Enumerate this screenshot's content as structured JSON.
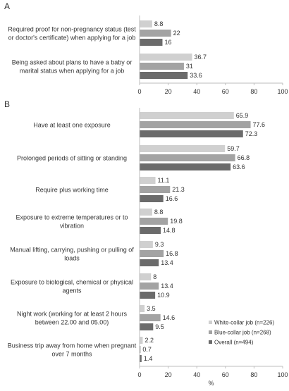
{
  "chart_data": [
    {
      "type": "bar",
      "panel_label": "A",
      "categories": [
        "Required proof for non-pregnancy status (test or doctor's certificate) when applying for a job",
        "Being asked about plans to have a baby or marital status when applying for a job"
      ],
      "category_lines": [
        [
          "Required proof for non-pregnancy status (test",
          "or doctor's certificate) when applying for a job"
        ],
        [
          "Being asked about plans to have a baby or",
          "marital status when applying for a job"
        ]
      ],
      "series": [
        {
          "name": "White-collar job (n=226)",
          "values": [
            8.8,
            36.7
          ]
        },
        {
          "name": "Blue-collar job (n=268)",
          "values": [
            22,
            31
          ]
        },
        {
          "name": "Overall (n=494)",
          "values": [
            16,
            33.6
          ]
        }
      ],
      "value_labels": [
        [
          "8.8",
          "36.7"
        ],
        [
          "22",
          "31"
        ],
        [
          "16",
          "33.6"
        ]
      ],
      "xlim": [
        0,
        100
      ],
      "xticks": [
        "0",
        "20",
        "40",
        "60",
        "80",
        "100"
      ]
    },
    {
      "type": "bar",
      "panel_label": "B",
      "categories": [
        "Have at least one exposure",
        "Prolonged periods of sitting or standing",
        "Require plus working time",
        "Exposure to extreme temperatures or to vibration",
        "Manual lifting, carrying, pushing or pulling of loads",
        "Exposure to biological, chemical or physical agents",
        "Night work (working for at least 2 hours between 22.00 and 05.00)",
        "Business trip away from home when pregnant over 7 months"
      ],
      "category_lines": [
        [
          "Have at least one exposure"
        ],
        [
          "Prolonged periods of sitting or standing"
        ],
        [
          "Require plus working time"
        ],
        [
          "Exposure to extreme temperatures or to",
          "vibration"
        ],
        [
          "Manual lifting, carrying, pushing or pulling of",
          "loads"
        ],
        [
          "Exposure to biological, chemical or physical",
          "agents"
        ],
        [
          "Night work (working for at least 2 hours",
          "between 22.00 and 05.00)"
        ],
        [
          "Business trip away from home when pregnant",
          "over 7 months"
        ]
      ],
      "series": [
        {
          "name": "White-collar job (n=226)",
          "values": [
            65.9,
            59.7,
            11.1,
            8.8,
            9.3,
            8,
            3.5,
            2.2
          ]
        },
        {
          "name": "Blue-collar job (n=268)",
          "values": [
            77.6,
            66.8,
            21.3,
            19.8,
            16.8,
            13.4,
            14.6,
            0.7
          ]
        },
        {
          "name": "Overall (n=494)",
          "values": [
            72.3,
            63.6,
            16.6,
            14.8,
            13.4,
            10.9,
            9.5,
            1.4
          ]
        }
      ],
      "value_labels": [
        [
          "65.9",
          "59.7",
          "11.1",
          "8.8",
          "9.3",
          "8",
          "3.5",
          "2.2"
        ],
        [
          "77.6",
          "66.8",
          "21.3",
          "19.8",
          "16.8",
          "13.4",
          "14.6",
          "0.7"
        ],
        [
          "72.3",
          "63.6",
          "16.6",
          "14.8",
          "13.4",
          "10.9",
          "9.5",
          "1.4"
        ]
      ],
      "xlim": [
        0,
        100
      ],
      "xticks": [
        "0",
        "20",
        "40",
        "60",
        "80",
        "100"
      ],
      "xlabel": "%",
      "legend": {
        "position": "bottom-right",
        "entries": [
          "White-collar job (n=226)",
          "Blue-collar job (n=268)",
          "Overall (n=494)"
        ]
      }
    }
  ],
  "colors": {
    "white_collar": "#d0d0d0",
    "blue_collar": "#a3a3a3",
    "overall": "#6b6b6b",
    "axis": "#bdbdbd",
    "text": "#333333"
  }
}
